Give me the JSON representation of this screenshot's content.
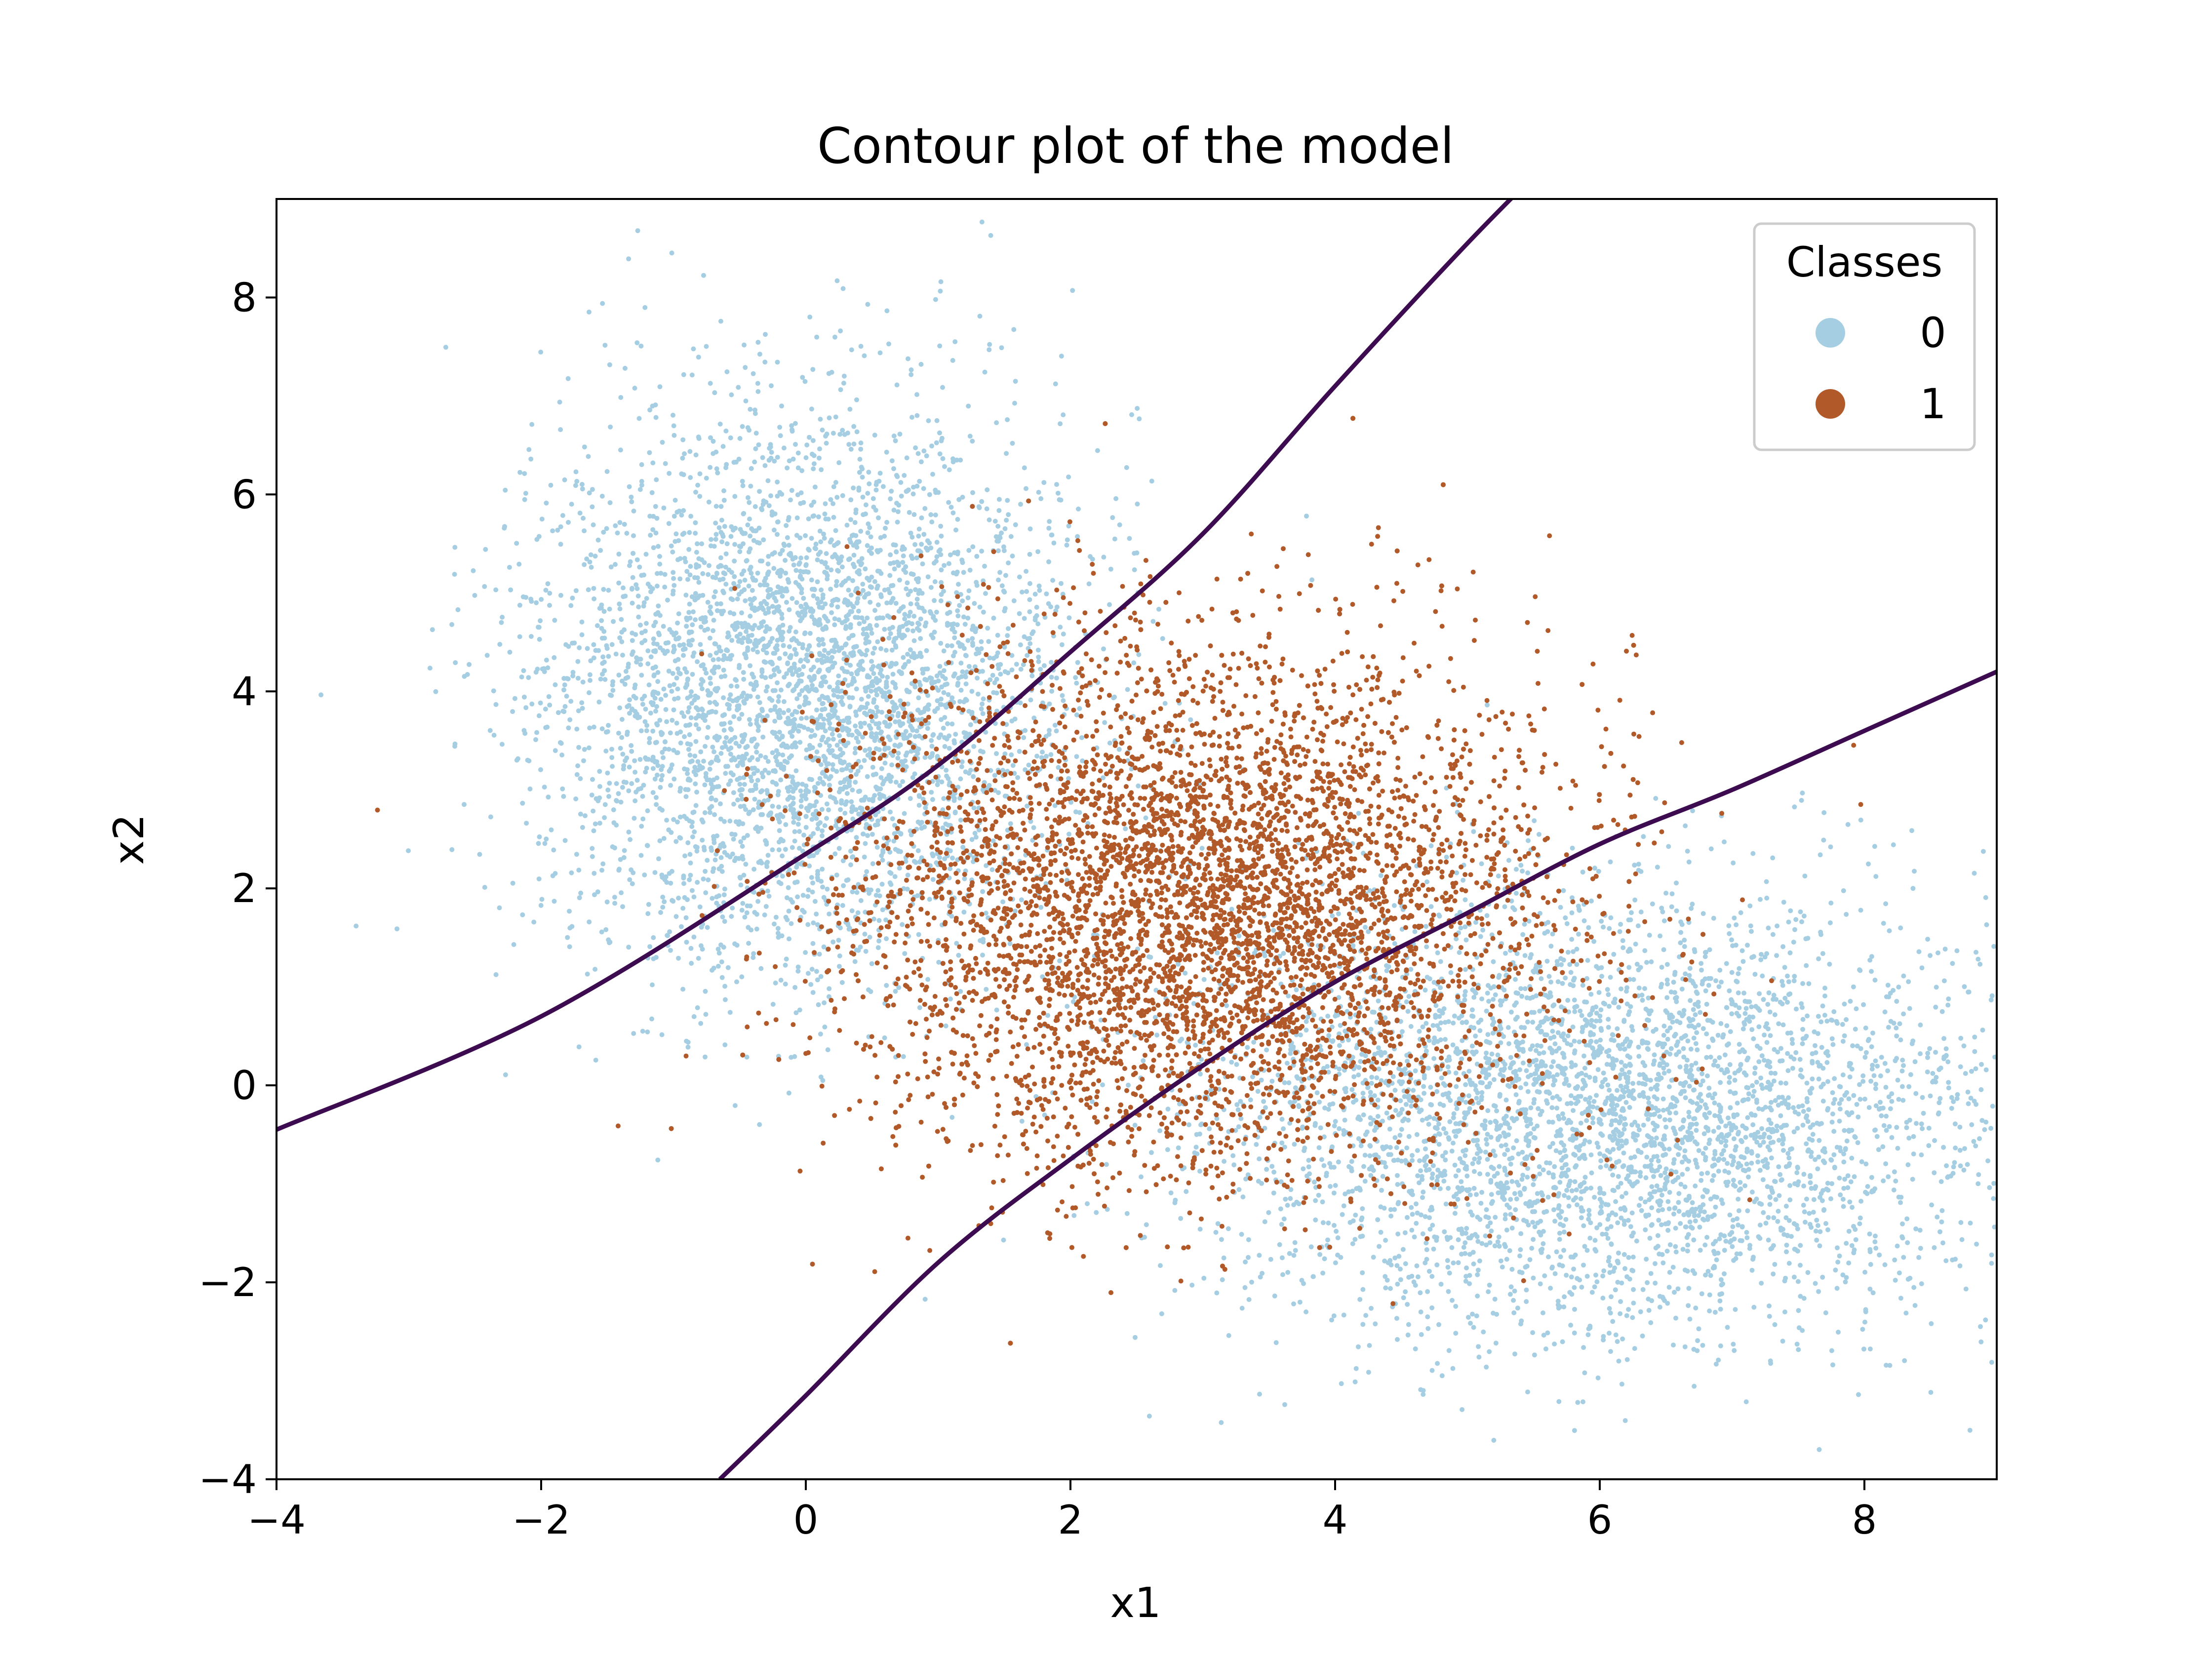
{
  "chart_data": {
    "type": "scatter",
    "title": "Contour plot of the model",
    "xlabel": "x1",
    "ylabel": "x2",
    "xlim": [
      -4,
      9
    ],
    "ylim": [
      -4,
      9
    ],
    "x_ticks": [
      -4,
      -2,
      0,
      2,
      4,
      6,
      8
    ],
    "y_ticks": [
      -4,
      -2,
      0,
      2,
      4,
      6,
      8
    ],
    "x_tick_labels": [
      "−4",
      "−2",
      "0",
      "2",
      "4",
      "6",
      "8"
    ],
    "y_tick_labels": [
      "−4",
      "−2",
      "0",
      "2",
      "4",
      "6",
      "8"
    ],
    "grid": false,
    "legend": {
      "title": "Classes",
      "placement": "top-right",
      "entries": [
        {
          "label": "0",
          "color": "#a6cee3"
        },
        {
          "label": "1",
          "color": "#b15928"
        }
      ]
    },
    "series": [
      {
        "label": "0",
        "color": "#a6cee3",
        "clusters": [
          {
            "center": [
              0.0,
              4.0
            ],
            "std": [
              1.0,
              1.4
            ],
            "n": 4200
          },
          {
            "center": [
              6.0,
              -0.3
            ],
            "std": [
              1.5,
              1.1
            ],
            "n": 4200
          }
        ]
      },
      {
        "label": "1",
        "color": "#b15928",
        "clusters": [
          {
            "center": [
              3.0,
              1.8
            ],
            "std": [
              1.3,
              1.3
            ],
            "n": 6500
          }
        ]
      }
    ],
    "contour_lines": [
      {
        "color": "#3d0b4f",
        "points": [
          [
            -4,
            -0.45
          ],
          [
            -2,
            0.7
          ],
          [
            0,
            2.35
          ],
          [
            1,
            3.25
          ],
          [
            2,
            4.4
          ],
          [
            3,
            5.6
          ],
          [
            4,
            7.1
          ],
          [
            5,
            8.55
          ],
          [
            5.7,
            9.5
          ]
        ]
      },
      {
        "color": "#3d0b4f",
        "points": [
          [
            -0.65,
            -4
          ],
          [
            0,
            -3.15
          ],
          [
            1,
            -1.8
          ],
          [
            2,
            -0.75
          ],
          [
            3,
            0.2
          ],
          [
            4,
            1.05
          ],
          [
            5,
            1.75
          ],
          [
            6,
            2.45
          ],
          [
            7,
            3.0
          ],
          [
            8,
            3.6
          ],
          [
            9,
            4.2
          ]
        ]
      }
    ]
  }
}
